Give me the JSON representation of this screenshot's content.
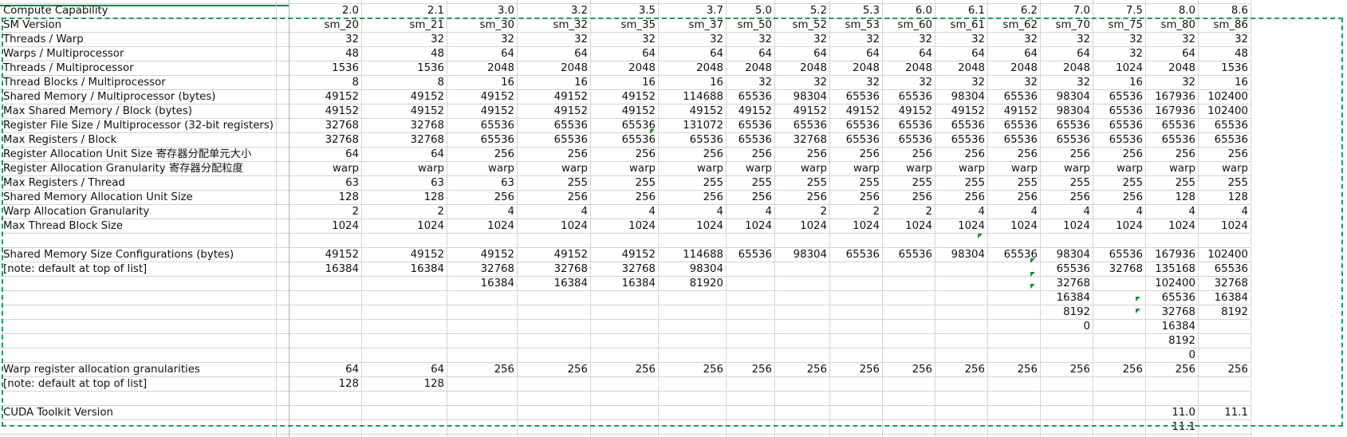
{
  "columns": [
    "",
    "2.0",
    "2.1",
    "3.0",
    "3.2",
    "3.5",
    "3.7",
    "5.0",
    "5.2",
    "5.3",
    "6.0",
    "6.1",
    "6.2",
    "7.0",
    "7.5",
    "8.0",
    "8.6"
  ],
  "rows": [
    {
      "label": "",
      "cells": [
        "",
        "",
        "",
        "",
        "",
        "",
        "",
        "",
        "",
        "",
        "",
        "",
        "",
        "",
        "",
        ""
      ]
    },
    {
      "label": "Compute Capability",
      "cells": [
        "2.0",
        "2.1",
        "3.0",
        "3.2",
        "3.5",
        "3.7",
        "5.0",
        "5.2",
        "5.3",
        "6.0",
        "6.1",
        "6.2",
        "7.0",
        "7.5",
        "8.0",
        "8.6"
      ]
    },
    {
      "label": "SM Version",
      "cells": [
        "sm_20",
        "sm_21",
        "sm_30",
        "sm_32",
        "sm_35",
        "sm_37",
        "sm_50",
        "sm_52",
        "sm_53",
        "sm_60",
        "sm_61",
        "sm_62",
        "sm_70",
        "sm_75",
        "sm_80",
        "sm_86"
      ]
    },
    {
      "label": "Threads / Warp",
      "cells": [
        "32",
        "32",
        "32",
        "32",
        "32",
        "32",
        "32",
        "32",
        "32",
        "32",
        "32",
        "32",
        "32",
        "32",
        "32",
        "32"
      ]
    },
    {
      "label": "Warps / Multiprocessor",
      "cells": [
        "48",
        "48",
        "64",
        "64",
        "64",
        "64",
        "64",
        "64",
        "64",
        "64",
        "64",
        "64",
        "64",
        "32",
        "64",
        "48"
      ]
    },
    {
      "label": "Threads / Multiprocessor",
      "cells": [
        "1536",
        "1536",
        "2048",
        "2048",
        "2048",
        "2048",
        "2048",
        "2048",
        "2048",
        "2048",
        "2048",
        "2048",
        "2048",
        "1024",
        "2048",
        "1536"
      ]
    },
    {
      "label": "Thread Blocks / Multiprocessor",
      "cells": [
        "8",
        "8",
        "16",
        "16",
        "16",
        "16",
        "32",
        "32",
        "32",
        "32",
        "32",
        "32",
        "32",
        "16",
        "32",
        "16"
      ]
    },
    {
      "label": "Shared Memory / Multiprocessor (bytes)",
      "cells": [
        "49152",
        "49152",
        "49152",
        "49152",
        "49152",
        "114688",
        "65536",
        "98304",
        "65536",
        "65536",
        "98304",
        "65536",
        "98304",
        "65536",
        "167936",
        "102400"
      ]
    },
    {
      "label": "Max Shared Memory / Block (bytes)",
      "cells": [
        "49152",
        "49152",
        "49152",
        "49152",
        "49152",
        "49152",
        "49152",
        "49152",
        "49152",
        "49152",
        "49152",
        "49152",
        "98304",
        "65536",
        "167936",
        "102400"
      ]
    },
    {
      "label": "Register File Size / Multiprocessor (32-bit registers)",
      "cells": [
        "32768",
        "32768",
        "65536",
        "65536",
        "65536",
        "131072",
        "65536",
        "65536",
        "65536",
        "65536",
        "65536",
        "65536",
        "65536",
        "65536",
        "65536",
        "65536"
      ]
    },
    {
      "label": "Max Registers / Block",
      "cells": [
        "32768",
        "32768",
        "65536",
        "65536",
        "65536",
        "65536",
        "65536",
        "32768",
        "65536",
        "65536",
        "65536",
        "65536",
        "65536",
        "65536",
        "65536",
        "65536"
      ]
    },
    {
      "label": "Register Allocation Unit Size 寄存器分配单元大小",
      "cells": [
        "64",
        "64",
        "256",
        "256",
        "256",
        "256",
        "256",
        "256",
        "256",
        "256",
        "256",
        "256",
        "256",
        "256",
        "256",
        "256"
      ]
    },
    {
      "label": "Register Allocation Granularity 寄存器分配粒度",
      "cells": [
        "warp",
        "warp",
        "warp",
        "warp",
        "warp",
        "warp",
        "warp",
        "warp",
        "warp",
        "warp",
        "warp",
        "warp",
        "warp",
        "warp",
        "warp",
        "warp"
      ]
    },
    {
      "label": "Max Registers / Thread",
      "cells": [
        "63",
        "63",
        "63",
        "255",
        "255",
        "255",
        "255",
        "255",
        "255",
        "255",
        "255",
        "255",
        "255",
        "255",
        "255",
        "255"
      ]
    },
    {
      "label": "Shared Memory Allocation Unit Size",
      "cells": [
        "128",
        "128",
        "256",
        "256",
        "256",
        "256",
        "256",
        "256",
        "256",
        "256",
        "256",
        "256",
        "256",
        "256",
        "128",
        "128"
      ]
    },
    {
      "label": "Warp Allocation Granularity",
      "cells": [
        "2",
        "2",
        "4",
        "4",
        "4",
        "4",
        "4",
        "2",
        "2",
        "2",
        "4",
        "4",
        "4",
        "4",
        "4",
        "4"
      ]
    },
    {
      "label": "Max Thread Block Size",
      "cells": [
        "1024",
        "1024",
        "1024",
        "1024",
        "1024",
        "1024",
        "1024",
        "1024",
        "1024",
        "1024",
        "1024",
        "1024",
        "1024",
        "1024",
        "1024",
        "1024"
      ]
    },
    {
      "label": "",
      "cells": [
        "",
        "",
        "",
        "",
        "",
        "",
        "",
        "",
        "",
        "",
        "",
        "",
        "",
        "",
        "",
        ""
      ]
    },
    {
      "label": "Shared Memory Size Configurations (bytes)",
      "cells": [
        "49152",
        "49152",
        "49152",
        "49152",
        "49152",
        "114688",
        "65536",
        "98304",
        "65536",
        "65536",
        "98304",
        "65536",
        "98304",
        "65536",
        "167936",
        "102400"
      ]
    },
    {
      "label": "[note: default at top of list]",
      "cells": [
        "16384",
        "16384",
        "32768",
        "32768",
        "32768",
        "98304",
        "",
        "",
        "",
        "",
        "",
        "",
        "65536",
        "32768",
        "135168",
        "65536"
      ]
    },
    {
      "label": "",
      "cells": [
        "",
        "",
        "16384",
        "16384",
        "16384",
        "81920",
        "",
        "",
        "",
        "",
        "",
        "",
        "32768",
        "",
        "102400",
        "32768"
      ]
    },
    {
      "label": "",
      "cells": [
        "",
        "",
        "",
        "",
        "",
        "",
        "",
        "",
        "",
        "",
        "",
        "",
        "16384",
        "",
        "65536",
        "16384"
      ]
    },
    {
      "label": "",
      "cells": [
        "",
        "",
        "",
        "",
        "",
        "",
        "",
        "",
        "",
        "",
        "",
        "",
        "8192",
        "",
        "32768",
        "8192"
      ]
    },
    {
      "label": "",
      "cells": [
        "",
        "",
        "",
        "",
        "",
        "",
        "",
        "",
        "",
        "",
        "",
        "",
        "0",
        "",
        "16384",
        ""
      ]
    },
    {
      "label": "",
      "cells": [
        "",
        "",
        "",
        "",
        "",
        "",
        "",
        "",
        "",
        "",
        "",
        "",
        "",
        "",
        "8192",
        ""
      ]
    },
    {
      "label": "",
      "cells": [
        "",
        "",
        "",
        "",
        "",
        "",
        "",
        "",
        "",
        "",
        "",
        "",
        "",
        "",
        "0",
        ""
      ]
    },
    {
      "label": "Warp register allocation granularities",
      "cells": [
        "64",
        "64",
        "256",
        "256",
        "256",
        "256",
        "256",
        "256",
        "256",
        "256",
        "256",
        "256",
        "256",
        "256",
        "256",
        "256"
      ]
    },
    {
      "label": "[note: default at top of list]",
      "cells": [
        "128",
        "128",
        "",
        "",
        "",
        "",
        "",
        "",
        "",
        "",
        "",
        "",
        "",
        "",
        "",
        ""
      ]
    },
    {
      "label": "",
      "cells": [
        "",
        "",
        "",
        "",
        "",
        "",
        "",
        "",
        "",
        "",
        "",
        "",
        "",
        "",
        "",
        ""
      ]
    },
    {
      "label": "CUDA Toolkit Version",
      "cells": [
        "",
        "",
        "",
        "",
        "",
        "",
        "",
        "",
        "",
        "",
        "",
        "",
        "",
        "",
        "11.0",
        "11.1"
      ]
    },
    {
      "label": "",
      "cells": [
        "",
        "",
        "",
        "",
        "",
        "",
        "",
        "",
        "",
        "",
        "",
        "",
        "",
        "",
        "11.1",
        ""
      ]
    },
    {
      "label": "",
      "cells": [
        "",
        "",
        "",
        "",
        "",
        "",
        "",
        "",
        "",
        "",
        "",
        "",
        "",
        "",
        "",
        ""
      ]
    }
  ]
}
